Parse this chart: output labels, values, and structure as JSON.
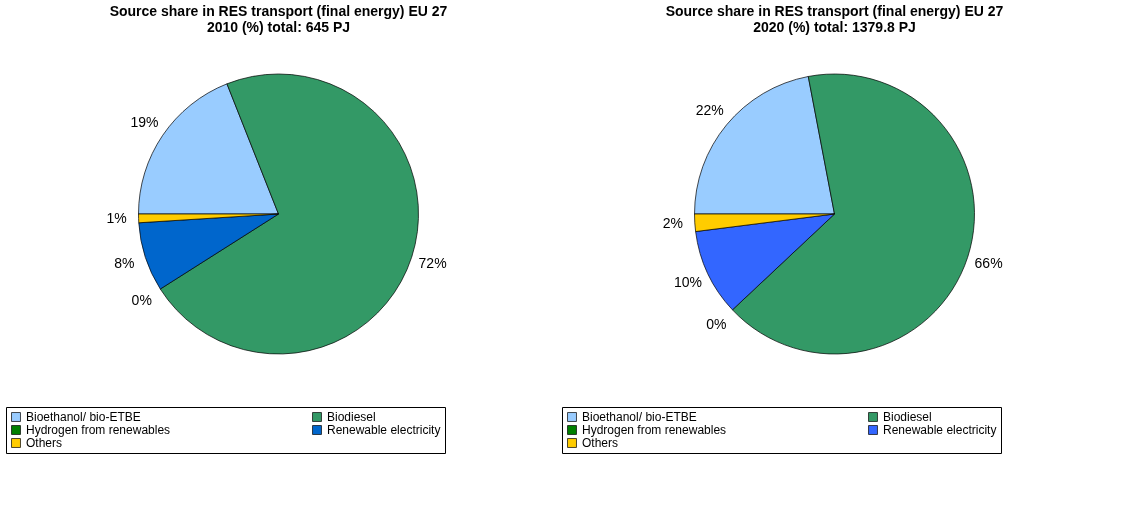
{
  "chart_data": [
    {
      "type": "pie",
      "title": "Source share in RES transport (final energy) EU 27\n2010 (%) total: 645 PJ",
      "categories": [
        "Bioethanol/ bio-ETBE",
        "Biodiesel",
        "Hydrogen from renewables",
        "Renewable electricity",
        "Others"
      ],
      "values": [
        19,
        72,
        0,
        8,
        1
      ],
      "value_labels": [
        "19%",
        "72%",
        "0%",
        "8%",
        "1%"
      ],
      "colors": [
        "#99ccff",
        "#339966",
        "#008000",
        "#0066cc",
        "#ffcc00"
      ],
      "legend": "bottom"
    },
    {
      "type": "pie",
      "title": "Source share in RES transport (final energy) EU 27\n2020 (%) total: 1379.8 PJ",
      "categories": [
        "Bioethanol/ bio-ETBE",
        "Biodiesel",
        "Hydrogen from renewables",
        "Renewable electricity",
        "Others"
      ],
      "values": [
        22,
        66,
        0,
        10,
        2
      ],
      "value_labels": [
        "22%",
        "66%",
        "0%",
        "10%",
        "2%"
      ],
      "colors": [
        "#99ccff",
        "#339966",
        "#008000",
        "#3366ff",
        "#ffcc00"
      ],
      "legend": "bottom"
    }
  ]
}
